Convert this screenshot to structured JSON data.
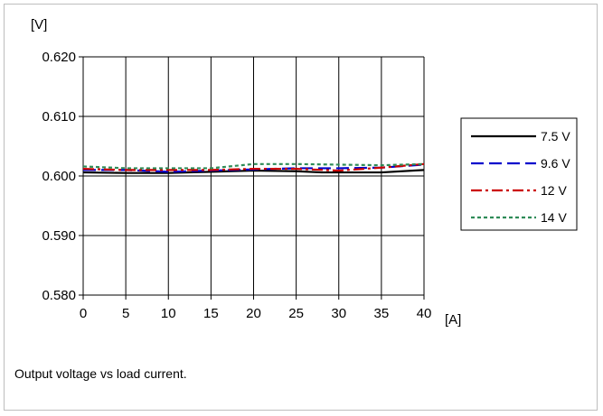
{
  "chart_data": {
    "type": "line",
    "ylabel": "[V]",
    "xlabel": "[A]",
    "xlim": [
      0,
      40
    ],
    "ylim": [
      0.58,
      0.62
    ],
    "x_ticks": [
      "0",
      "5",
      "10",
      "15",
      "20",
      "25",
      "30",
      "35",
      "40"
    ],
    "y_ticks": [
      "0.580",
      "0.590",
      "0.600",
      "0.610",
      "0.620"
    ],
    "grid": true,
    "legend_position": "right",
    "series": [
      {
        "name": "7.5 V",
        "color": "#000000",
        "dash": "solid",
        "x": [
          0,
          5,
          10,
          15,
          20,
          25,
          28,
          30,
          35,
          40
        ],
        "y": [
          0.6006,
          0.6005,
          0.6005,
          0.6007,
          0.6009,
          0.6008,
          0.6006,
          0.6006,
          0.6006,
          0.601
        ]
      },
      {
        "name": "9.6 V",
        "color": "#0000cc",
        "dash": "long-dash",
        "x": [
          0,
          5,
          10,
          15,
          20,
          25,
          30,
          35,
          40
        ],
        "y": [
          0.601,
          0.601,
          0.6007,
          0.6009,
          0.6011,
          0.6013,
          0.6013,
          0.6014,
          0.6019
        ]
      },
      {
        "name": "12 V",
        "color": "#cc0000",
        "dash": "dash-dot",
        "x": [
          0,
          5,
          10,
          15,
          20,
          25,
          30,
          35,
          40
        ],
        "y": [
          0.6012,
          0.601,
          0.601,
          0.601,
          0.6012,
          0.6012,
          0.6009,
          0.6014,
          0.602
        ]
      },
      {
        "name": "14 V",
        "color": "#2e8b57",
        "dash": "short-dash",
        "x": [
          0,
          5,
          10,
          15,
          20,
          25,
          30,
          35,
          40
        ],
        "y": [
          0.6016,
          0.6013,
          0.6013,
          0.6013,
          0.602,
          0.602,
          0.6019,
          0.6018,
          0.602
        ]
      }
    ]
  },
  "caption": "Output voltage vs load current."
}
